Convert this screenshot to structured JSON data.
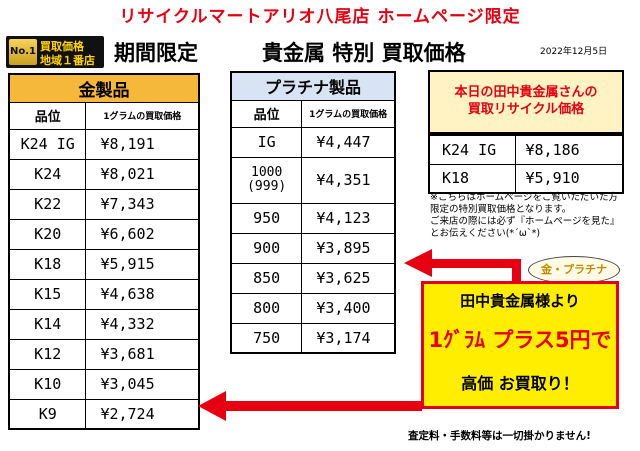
{
  "header": {
    "title": "リサイクルマートアリオ八尾店 ホームページ限定",
    "badge_no1": "No.1",
    "badge_line1": "買取価格",
    "badge_line2": "地域１番店",
    "headline_part1": "期間限定",
    "headline_part2": "貴金属 特別 買取価格",
    "date": "2022年12月5日"
  },
  "gold": {
    "title": "金製品",
    "col_item": "品位",
    "col_price": "1グラムの買取価格",
    "rows": [
      {
        "grade": "K24 IG",
        "price": "¥8,191"
      },
      {
        "grade": "K24",
        "price": "¥8,021"
      },
      {
        "grade": "K22",
        "price": "¥7,343"
      },
      {
        "grade": "K20",
        "price": "¥6,602"
      },
      {
        "grade": "K18",
        "price": "¥5,915"
      },
      {
        "grade": "K15",
        "price": "¥4,638"
      },
      {
        "grade": "K14",
        "price": "¥4,332"
      },
      {
        "grade": "K12",
        "price": "¥3,681"
      },
      {
        "grade": "K10",
        "price": "¥3,045"
      },
      {
        "grade": "K9",
        "price": "¥2,724"
      }
    ]
  },
  "platinum": {
    "title": "プラチナ製品",
    "col_item": "品位",
    "col_price": "1グラムの買取価格",
    "rows": [
      {
        "grade": "IG",
        "grade2": "",
        "price": "¥4,447"
      },
      {
        "grade": "1000",
        "grade2": "(999)",
        "price": "¥4,351"
      },
      {
        "grade": "950",
        "grade2": "",
        "price": "¥4,123"
      },
      {
        "grade": "900",
        "grade2": "",
        "price": "¥3,895"
      },
      {
        "grade": "850",
        "grade2": "",
        "price": "¥3,625"
      },
      {
        "grade": "800",
        "grade2": "",
        "price": "¥3,400"
      },
      {
        "grade": "750",
        "grade2": "",
        "price": "¥3,174"
      }
    ]
  },
  "today": {
    "title_line1": "本日の田中貴金属さんの",
    "title_line2": "買取リサイクル価格",
    "rows": [
      {
        "grade": "K24 IG",
        "price": "¥8,186"
      },
      {
        "grade": "K18",
        "price": "¥5,910"
      }
    ]
  },
  "note": {
    "line1": "※こちらはホームページをご覧いただいた方限定の特別買取価格となります。",
    "line2": "ご来店の際には必ず『ホームページを見た』とお伝えください(*´ω`*)"
  },
  "promo": {
    "oval": "金・プラチナ",
    "line1": "田中貴金属様より",
    "line2": "1ｸﾞﾗﾑ プラス5円で",
    "line3": "高価 お買取り！"
  },
  "footer": {
    "note": "査定料・手数料等は一切掛かりません!"
  },
  "colors": {
    "accent_red": "#e60012",
    "gold_header": "#f6b83a",
    "platinum_header": "#d8e3f4",
    "promo_yellow": "#ffee00"
  }
}
